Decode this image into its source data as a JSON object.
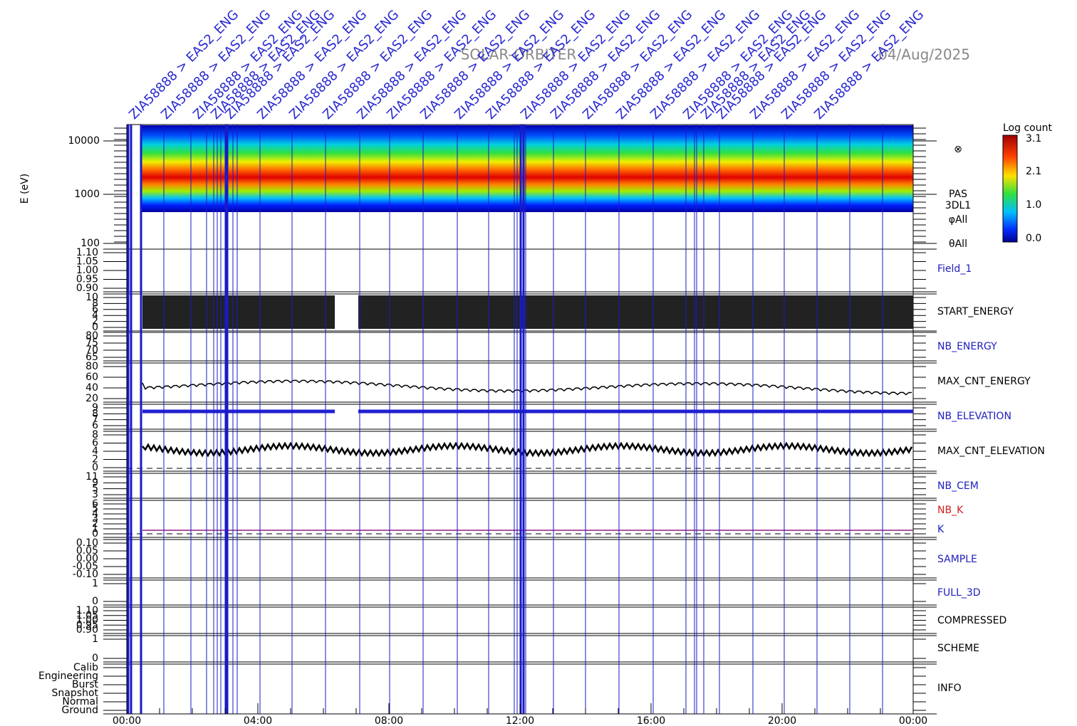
{
  "header": {
    "mission": "SOLAR-ORBITER",
    "date": "04/Aug/2025"
  },
  "spectrogram": {
    "ylabel": "E (eV)",
    "yticks": [
      "10000",
      "1000",
      "100"
    ],
    "side_labels": [
      "⊗",
      "PAS",
      "3DL1",
      "φAll",
      "θAll"
    ],
    "colorbar": {
      "title": "Log count",
      "ticks": [
        "3.1",
        "2.1",
        "1.0",
        "0.0"
      ]
    }
  },
  "panels": [
    {
      "label": "Field_1",
      "color": "#2020c0",
      "ticks": [
        "1.10",
        "1.05",
        "1.00",
        "0.95",
        "0.90"
      ]
    },
    {
      "label": "START_ENERGY",
      "color": "#000000",
      "ticks": [
        "10",
        "8",
        "6",
        "4",
        "2",
        "0"
      ]
    },
    {
      "label": "NB_ENERGY",
      "color": "#2020c0",
      "ticks": [
        "80",
        "75",
        "70",
        "65"
      ]
    },
    {
      "label": "MAX_CNT_ENERGY",
      "color": "#000000",
      "ticks": [
        "80",
        "60",
        "40",
        "20"
      ]
    },
    {
      "label": "NB_ELEVATION",
      "color": "#2020c0",
      "ticks": [
        "9",
        "8",
        "7",
        "6"
      ]
    },
    {
      "label": "MAX_CNT_ELEVATION",
      "color": "#000000",
      "ticks": [
        "8",
        "6",
        "4",
        "2",
        "0"
      ]
    },
    {
      "label": "NB_CEM",
      "color": "#2020c0",
      "ticks": [
        "11",
        "9",
        "5",
        "3"
      ]
    },
    {
      "label": "NB_K",
      "color": "#d02020",
      "ticks": [
        "6",
        "5",
        "4",
        "3",
        "2",
        "1",
        "0"
      ]
    },
    {
      "label": "SAMPLE",
      "color": "#2020c0",
      "ticks": [
        "0.10",
        "0.05",
        "0.00",
        "-0.05",
        "-0.10"
      ]
    },
    {
      "label": "FULL_3D",
      "color": "#2020c0",
      "ticks": [
        "1",
        "0"
      ]
    },
    {
      "label": "COMPRESSED",
      "color": "#000000",
      "ticks": [
        "1.10",
        "1.05",
        "1.00",
        "0.95",
        "0.90"
      ]
    },
    {
      "label": "SCHEME",
      "color": "#000000",
      "ticks": [
        "1",
        "0"
      ]
    },
    {
      "label": "INFO",
      "color": "#000000",
      "ticks": [
        "Calib",
        "Engineering",
        "Burst",
        "Snapshot",
        "Normal",
        "Ground"
      ]
    }
  ],
  "k_label": "K",
  "time_ticks": [
    "00:00",
    "04:00",
    "08:00",
    "12:00",
    "16:00",
    "20:00",
    "00:00"
  ],
  "event_labels": [
    "ZIA58888 > EAS2_ENG",
    "ZIA58888 > EAS2_ENG",
    "ZIA58888 > EAS2_ENG",
    "ZIA58888 > EAS2_ENG",
    "ZIA58888 > EAS2_ENG",
    "ZIA58888 > EAS2_ENG",
    "ZIA58888 > EAS2_ENG",
    "ZIA58888 > EAS2_ENG",
    "ZIA58888 > EAS2_ENG",
    "ZIA58888 > EAS2_ENG",
    "ZIA58888 > EAS2_ENG",
    "ZIA58888 > EAS2_ENG",
    "ZIA58888 > EAS2_ENG",
    "ZIA58888 > EAS2_ENG",
    "ZIA58888 > EAS2_ENG",
    "ZIA58888 > EAS2_ENG",
    "ZIA58888 > EAS2_ENG",
    "ZIA58888 > EAS2_ENG",
    "ZIA58888 > EAS2_ENG",
    "ZIA58888 > EAS2_ENG",
    "ZIA58888 > EAS2_ENG",
    "ZIA58888 > EAS2_ENG",
    "ZIA58888 > EAS2_ENG",
    "ZIA58888 > EAS2_ENG"
  ]
}
